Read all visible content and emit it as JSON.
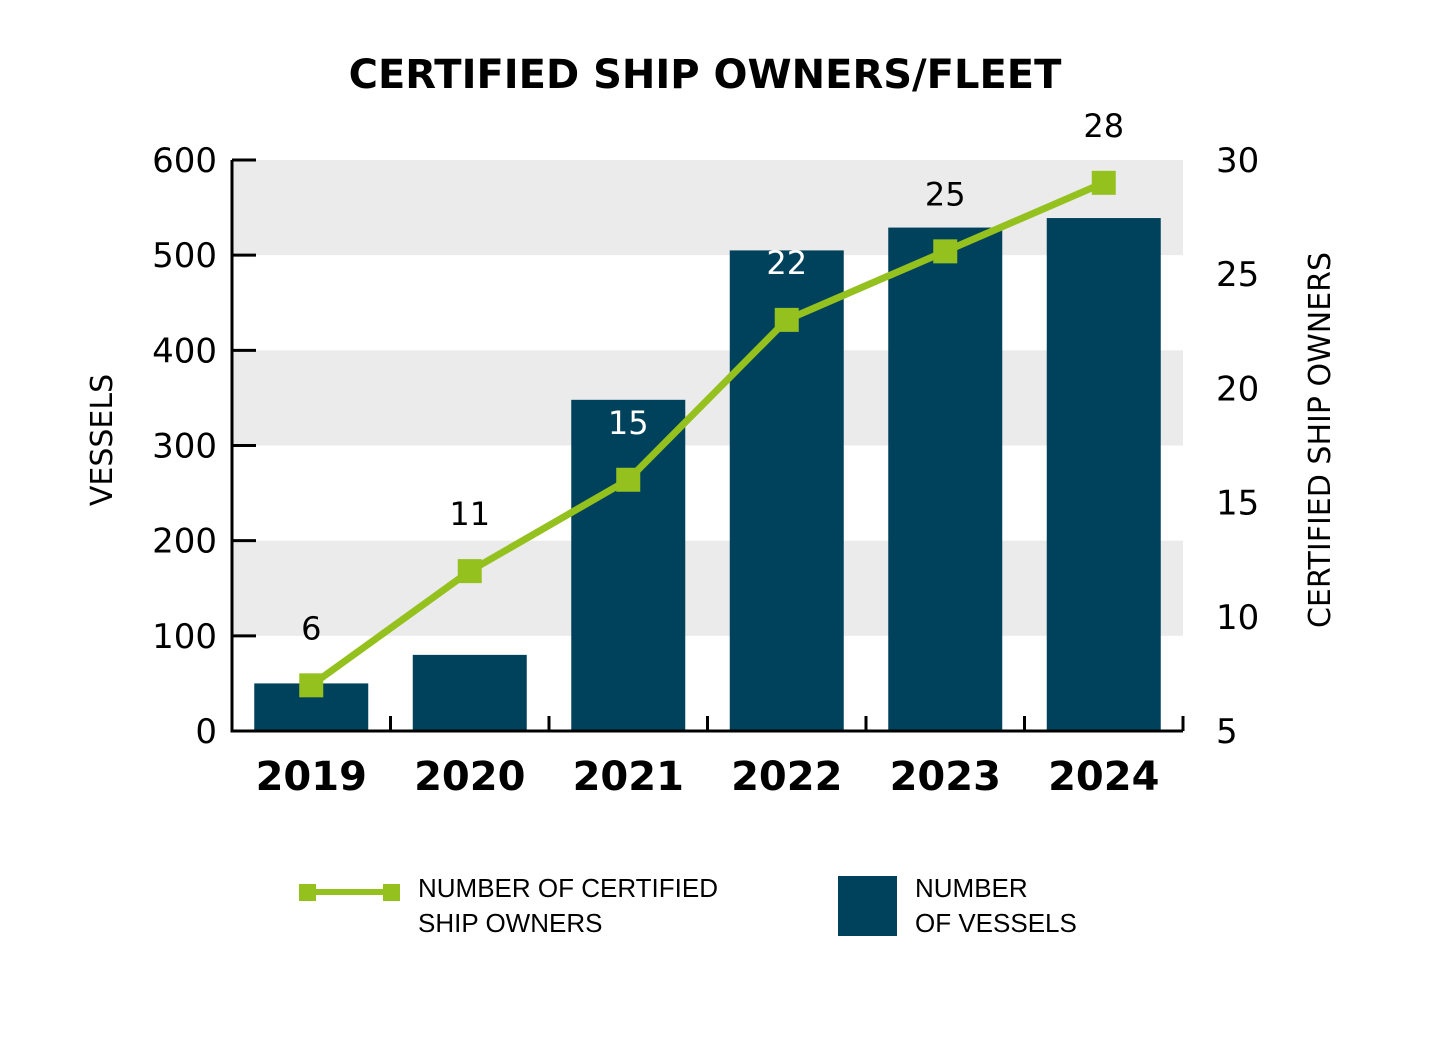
{
  "chart_data": {
    "type": "bar",
    "title": "CERTIFIED SHIP OWNERS/FLEET",
    "categories": [
      "2019",
      "2020",
      "2021",
      "2022",
      "2023",
      "2024"
    ],
    "series": [
      {
        "name": "NUMBER OF VESSELS",
        "type": "bar",
        "axis": "left",
        "color": "#00425C",
        "values": [
          50,
          80,
          348,
          505,
          529,
          539
        ]
      },
      {
        "name": "NUMBER OF CERTIFIED SHIP OWNERS",
        "type": "line",
        "axis": "right",
        "color": "#95C11F",
        "values": [
          6,
          11,
          15,
          22,
          25,
          28
        ],
        "data_labels": [
          "6",
          "11",
          "15",
          "22",
          "25",
          "28"
        ]
      }
    ],
    "xlabel": "",
    "ylabel": "VESSELS",
    "ylabel_right": "CERTIFIED SHIP OWNERS",
    "ylim": [
      0,
      600
    ],
    "ylim_right": [
      5,
      30
    ],
    "yticks": [
      "0",
      "100",
      "200",
      "300",
      "400",
      "500",
      "600"
    ],
    "yticks_right": [
      "5",
      "10",
      "15",
      "20",
      "25",
      "30"
    ],
    "grid": "alternating horizontal bands",
    "band_color": "#EBEBEB",
    "legend": {
      "position": "bottom",
      "items": [
        {
          "label_line1": "NUMBER OF CERTIFIED",
          "label_line2": "SHIP OWNERS",
          "symbol": "line-square"
        },
        {
          "label_line1": "NUMBER",
          "label_line2": "OF VESSELS",
          "symbol": "square"
        }
      ]
    }
  }
}
